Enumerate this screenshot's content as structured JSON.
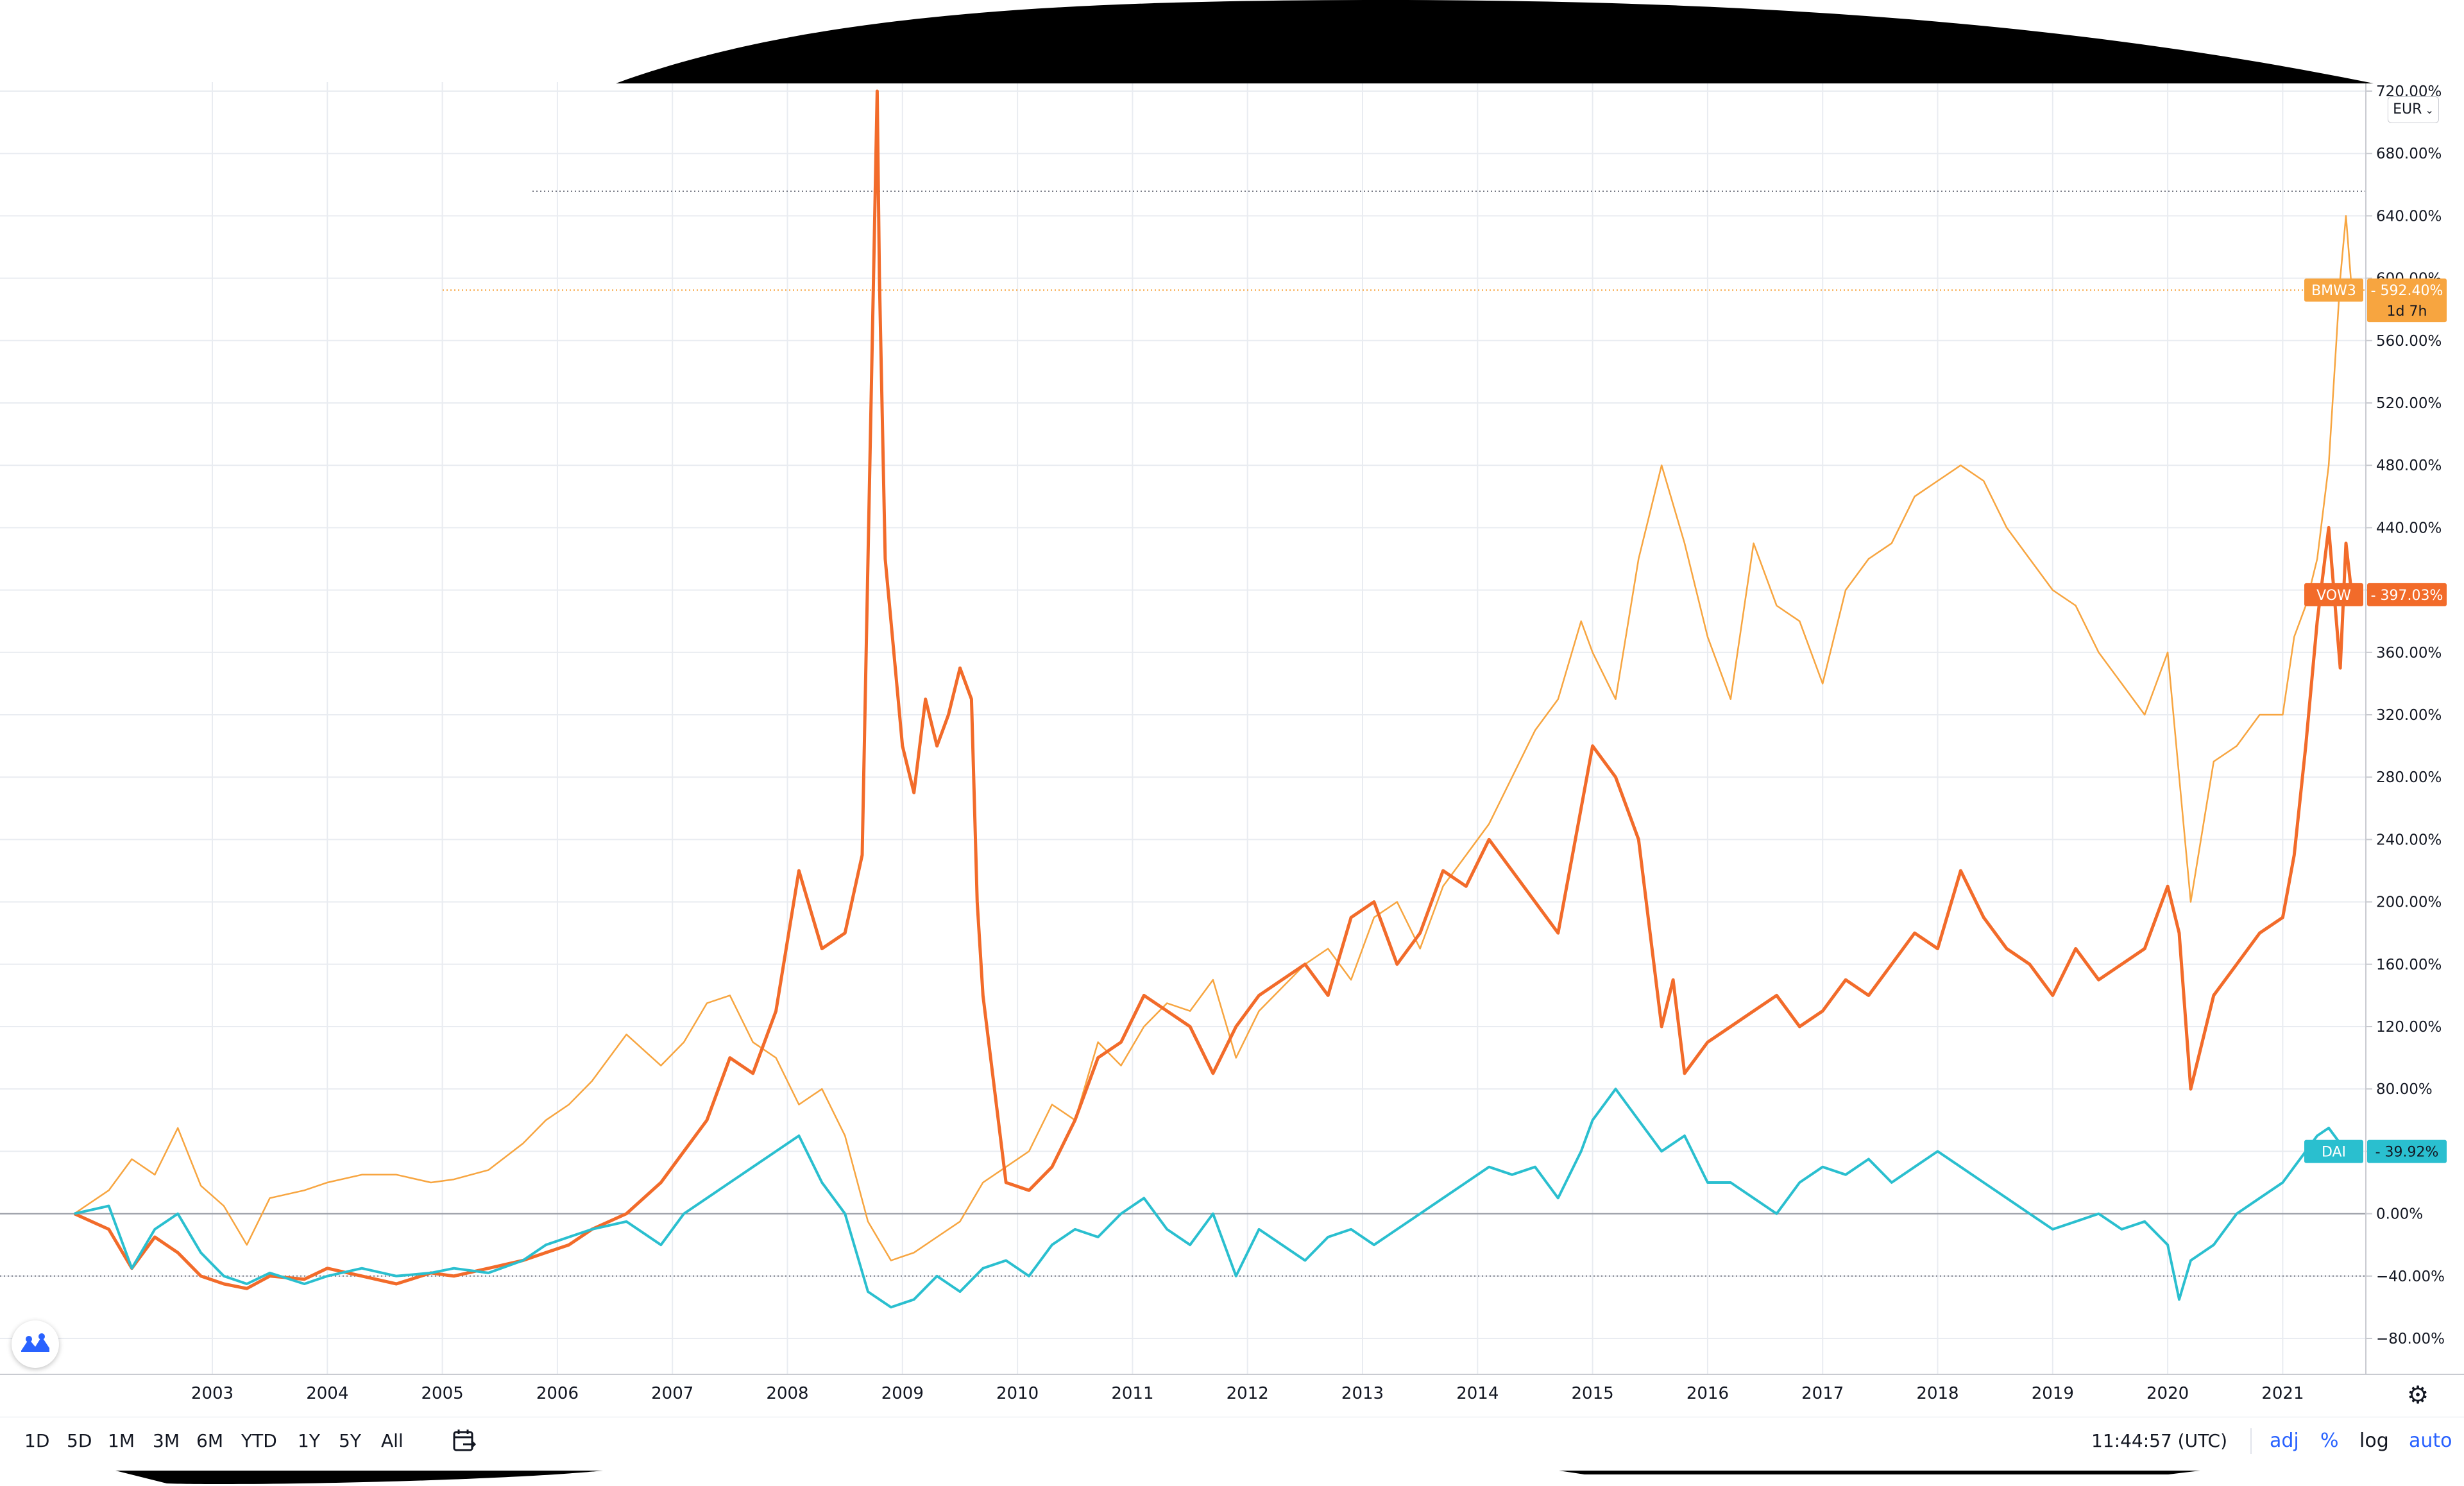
{
  "currency": "EUR",
  "y_axis_labels": [
    "720.00%",
    "680.00%",
    "640.00%",
    "600.00%",
    "560.00%",
    "520.00%",
    "480.00%",
    "440.00%",
    "400.00%",
    "360.00%",
    "320.00%",
    "280.00%",
    "240.00%",
    "200.00%",
    "160.00%",
    "120.00%",
    "80.00%",
    "40.00%",
    "0.00%",
    "−40.00%",
    "−80.00%"
  ],
  "x_axis_labels": [
    "2003",
    "2004",
    "2005",
    "2006",
    "2007",
    "2008",
    "2009",
    "2010",
    "2011",
    "2012",
    "2013",
    "2014",
    "2015",
    "2016",
    "2017",
    "2018",
    "2019",
    "2020",
    "2021"
  ],
  "tags": {
    "bmw": {
      "symbol": "BMW3",
      "value": "592.40%",
      "countdown": "1d 7h"
    },
    "vow": {
      "symbol": "VOW",
      "value": "397.03%"
    },
    "dai": {
      "symbol": "DAI",
      "value": "39.92%"
    }
  },
  "time_ranges": [
    "1D",
    "5D",
    "1M",
    "3M",
    "6M",
    "YTD",
    "1Y",
    "5Y",
    "All"
  ],
  "clock": "11:44:57 (UTC)",
  "scale_options": {
    "adj": "adj",
    "percent": "%",
    "log": "log",
    "auto": "auto"
  },
  "icons": {
    "settings": "gear-icon",
    "goto_date": "calendar-arrow-icon",
    "logo": "tradingview-logo-icon",
    "currency_caret": "chevron-down-icon"
  },
  "colors": {
    "bmw": "#F7A540",
    "vow": "#F26B2A",
    "dai": "#2ABFCF",
    "grid": "#E9ECF1",
    "accent": "#2962FF"
  },
  "chart_data": {
    "type": "line",
    "ylim": [
      -100,
      730
    ],
    "y_unit": "%",
    "xlim": [
      2001.8,
      2021.62
    ],
    "series": [
      {
        "name": "BMW3",
        "x": [
          2001.8,
          2002.1,
          2002.3,
          2002.5,
          2002.7,
          2002.9,
          2003.1,
          2003.3,
          2003.5,
          2003.8,
          2004.0,
          2004.3,
          2004.6,
          2004.9,
          2005.1,
          2005.4,
          2005.7,
          2005.9,
          2006.1,
          2006.3,
          2006.6,
          2006.9,
          2007.1,
          2007.3,
          2007.5,
          2007.7,
          2007.9,
          2008.1,
          2008.3,
          2008.5,
          2008.7,
          2008.9,
          2009.1,
          2009.3,
          2009.5,
          2009.7,
          2009.9,
          2010.1,
          2010.3,
          2010.5,
          2010.7,
          2010.9,
          2011.1,
          2011.3,
          2011.5,
          2011.7,
          2011.9,
          2012.1,
          2012.3,
          2012.5,
          2012.7,
          2012.9,
          2013.1,
          2013.3,
          2013.5,
          2013.7,
          2013.9,
          2014.1,
          2014.3,
          2014.5,
          2014.7,
          2014.9,
          2015.0,
          2015.2,
          2015.4,
          2015.6,
          2015.8,
          2016.0,
          2016.2,
          2016.4,
          2016.6,
          2016.8,
          2017.0,
          2017.2,
          2017.4,
          2017.6,
          2017.8,
          2018.0,
          2018.2,
          2018.4,
          2018.6,
          2018.8,
          2019.0,
          2019.2,
          2019.4,
          2019.6,
          2019.8,
          2020.0,
          2020.2,
          2020.4,
          2020.6,
          2020.8,
          2021.0,
          2021.1,
          2021.2,
          2021.3,
          2021.4,
          2021.5,
          2021.55,
          2021.6
        ],
        "values": [
          0,
          15,
          35,
          25,
          55,
          18,
          5,
          -20,
          10,
          15,
          20,
          25,
          25,
          20,
          22,
          28,
          45,
          60,
          70,
          85,
          115,
          95,
          110,
          135,
          140,
          110,
          100,
          70,
          80,
          50,
          -5,
          -30,
          -25,
          -15,
          -5,
          20,
          30,
          40,
          70,
          60,
          110,
          95,
          120,
          135,
          130,
          150,
          100,
          130,
          145,
          160,
          170,
          150,
          190,
          200,
          170,
          210,
          230,
          250,
          280,
          310,
          330,
          380,
          360,
          330,
          420,
          480,
          430,
          370,
          330,
          430,
          390,
          380,
          340,
          400,
          420,
          430,
          460,
          470,
          480,
          470,
          440,
          420,
          400,
          390,
          360,
          340,
          320,
          360,
          200,
          290,
          300,
          320,
          320,
          370,
          390,
          420,
          480,
          600,
          640,
          592.4
        ]
      },
      {
        "name": "VOW",
        "x": [
          2001.8,
          2002.1,
          2002.3,
          2002.5,
          2002.7,
          2002.9,
          2003.1,
          2003.3,
          2003.5,
          2003.8,
          2004.0,
          2004.3,
          2004.6,
          2004.9,
          2005.1,
          2005.4,
          2005.7,
          2005.9,
          2006.1,
          2006.3,
          2006.6,
          2006.9,
          2007.1,
          2007.3,
          2007.5,
          2007.7,
          2007.9,
          2008.1,
          2008.3,
          2008.5,
          2008.65,
          2008.78,
          2008.8,
          2008.85,
          2008.9,
          2009.0,
          2009.1,
          2009.2,
          2009.3,
          2009.4,
          2009.5,
          2009.6,
          2009.65,
          2009.7,
          2009.8,
          2009.9,
          2010.1,
          2010.3,
          2010.5,
          2010.7,
          2010.9,
          2011.1,
          2011.3,
          2011.5,
          2011.7,
          2011.9,
          2012.1,
          2012.3,
          2012.5,
          2012.7,
          2012.9,
          2013.1,
          2013.3,
          2013.5,
          2013.7,
          2013.9,
          2014.1,
          2014.3,
          2014.5,
          2014.7,
          2014.9,
          2015.0,
          2015.2,
          2015.4,
          2015.6,
          2015.7,
          2015.8,
          2016.0,
          2016.2,
          2016.4,
          2016.6,
          2016.8,
          2017.0,
          2017.2,
          2017.4,
          2017.6,
          2017.8,
          2018.0,
          2018.2,
          2018.4,
          2018.6,
          2018.8,
          2019.0,
          2019.2,
          2019.4,
          2019.6,
          2019.8,
          2020.0,
          2020.1,
          2020.2,
          2020.4,
          2020.6,
          2020.8,
          2021.0,
          2021.1,
          2021.2,
          2021.3,
          2021.4,
          2021.5,
          2021.55,
          2021.6
        ],
        "values": [
          0,
          -10,
          -35,
          -15,
          -25,
          -40,
          -45,
          -48,
          -40,
          -42,
          -35,
          -40,
          -45,
          -38,
          -40,
          -35,
          -30,
          -25,
          -20,
          -10,
          0,
          20,
          40,
          60,
          100,
          90,
          130,
          220,
          170,
          180,
          230,
          720,
          600,
          420,
          380,
          300,
          270,
          330,
          300,
          320,
          350,
          330,
          200,
          140,
          80,
          20,
          15,
          30,
          60,
          100,
          110,
          140,
          130,
          120,
          90,
          120,
          140,
          150,
          160,
          140,
          190,
          200,
          160,
          180,
          220,
          210,
          240,
          220,
          200,
          180,
          260,
          300,
          280,
          240,
          120,
          150,
          90,
          110,
          120,
          130,
          140,
          120,
          130,
          150,
          140,
          160,
          180,
          170,
          220,
          190,
          170,
          160,
          140,
          170,
          150,
          160,
          170,
          210,
          180,
          80,
          140,
          160,
          180,
          190,
          230,
          300,
          380,
          440,
          350,
          430,
          397
        ]
      },
      {
        "name": "DAI",
        "x": [
          2001.8,
          2002.1,
          2002.3,
          2002.5,
          2002.7,
          2002.9,
          2003.1,
          2003.3,
          2003.5,
          2003.8,
          2004.0,
          2004.3,
          2004.6,
          2004.9,
          2005.1,
          2005.4,
          2005.7,
          2005.9,
          2006.1,
          2006.3,
          2006.6,
          2006.9,
          2007.1,
          2007.3,
          2007.5,
          2007.7,
          2007.9,
          2008.1,
          2008.3,
          2008.5,
          2008.7,
          2008.9,
          2009.1,
          2009.3,
          2009.5,
          2009.7,
          2009.9,
          2010.1,
          2010.3,
          2010.5,
          2010.7,
          2010.9,
          2011.1,
          2011.3,
          2011.5,
          2011.7,
          2011.9,
          2012.1,
          2012.3,
          2012.5,
          2012.7,
          2012.9,
          2013.1,
          2013.3,
          2013.5,
          2013.7,
          2013.9,
          2014.1,
          2014.3,
          2014.5,
          2014.7,
          2014.9,
          2015.0,
          2015.2,
          2015.4,
          2015.6,
          2015.8,
          2016.0,
          2016.2,
          2016.4,
          2016.6,
          2016.8,
          2017.0,
          2017.2,
          2017.4,
          2017.6,
          2017.8,
          2018.0,
          2018.2,
          2018.4,
          2018.6,
          2018.8,
          2019.0,
          2019.2,
          2019.4,
          2019.6,
          2019.8,
          2020.0,
          2020.1,
          2020.2,
          2020.4,
          2020.6,
          2020.8,
          2021.0,
          2021.1,
          2021.2,
          2021.3,
          2021.4,
          2021.5,
          2021.55,
          2021.6
        ],
        "values": [
          0,
          5,
          -35,
          -10,
          0,
          -25,
          -40,
          -45,
          -38,
          -45,
          -40,
          -35,
          -40,
          -38,
          -35,
          -38,
          -30,
          -20,
          -15,
          -10,
          -5,
          -20,
          0,
          10,
          20,
          30,
          40,
          50,
          20,
          0,
          -50,
          -60,
          -55,
          -40,
          -50,
          -35,
          -30,
          -40,
          -20,
          -10,
          -15,
          0,
          10,
          -10,
          -20,
          0,
          -40,
          -10,
          -20,
          -30,
          -15,
          -10,
          -20,
          -10,
          0,
          10,
          20,
          30,
          25,
          30,
          10,
          40,
          60,
          80,
          60,
          40,
          50,
          20,
          20,
          10,
          0,
          20,
          30,
          25,
          35,
          20,
          30,
          40,
          30,
          20,
          10,
          0,
          -10,
          -5,
          0,
          -10,
          -5,
          -20,
          -55,
          -30,
          -20,
          0,
          10,
          20,
          30,
          40,
          50,
          55,
          45,
          40,
          39.9
        ]
      }
    ]
  }
}
